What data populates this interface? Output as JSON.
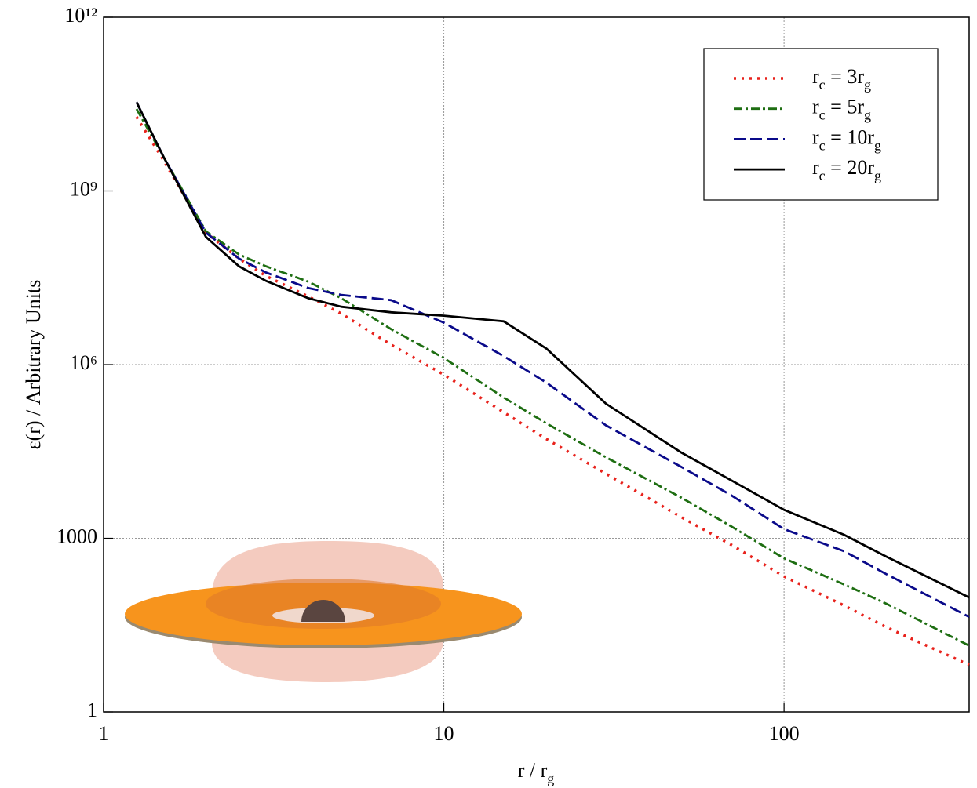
{
  "chart_data": {
    "type": "line",
    "xlabel": "r / rg",
    "ylabel": "ε(r) / Arbitrary Units",
    "x": [
      1.25,
      1.5,
      2,
      2.5,
      3,
      4,
      5,
      7,
      10,
      15,
      20,
      30,
      50,
      70,
      100,
      150,
      200,
      350
    ],
    "series": [
      {
        "name": "rc = 3rg",
        "color": "#e8221c",
        "style": "dotted",
        "values": [
          19000000000.0,
          3400000000.0,
          190000000.0,
          68000000.0,
          34000000.0,
          15000000.0,
          7600000.0,
          2200000.0,
          670000.0,
          150000.0,
          52000.0,
          13000.0,
          2300,
          770,
          220,
          69,
          29,
          6.5
        ]
      },
      {
        "name": "rc = 5rg",
        "color": "#1e6e12",
        "style": "dashdot",
        "values": [
          26000000000.0,
          3900000000.0,
          200000000.0,
          80000000.0,
          50000000.0,
          27000000.0,
          14000000.0,
          4100000.0,
          1300000.0,
          270000.0,
          97000.0,
          25000.0,
          5000,
          1600,
          450,
          160,
          74,
          14
        ]
      },
      {
        "name": "rc = 10rg",
        "color": "#0a0a8a",
        "style": "dashed",
        "values": [
          34000000000.0,
          3900000000.0,
          190000000.0,
          68000000.0,
          39000000.0,
          21000000.0,
          16000000.0,
          13000000.0,
          5300000.0,
          1400000.0,
          490000.0,
          89000.0,
          17000.0,
          5500,
          1440,
          600,
          240,
          44
        ]
      },
      {
        "name": "rc = 20rg",
        "color": "#000000",
        "style": "solid",
        "values": [
          34000000000.0,
          3900000000.0,
          160000000.0,
          50000000.0,
          28000000.0,
          14000000.0,
          10000000.0,
          8000000.0,
          7000000.0,
          5600000.0,
          1900000.0,
          210000.0,
          30000.0,
          10000.0,
          3100,
          1150,
          480,
          95
        ]
      }
    ],
    "xlim": [
      1,
      350
    ],
    "ylim": [
      1,
      1000000000000.0
    ],
    "log_x": true,
    "log_y": true,
    "xticks": [
      1,
      10,
      100
    ],
    "yticks": [
      1,
      1000,
      {
        "value": 1000000,
        "label": "10⁶"
      },
      {
        "value": 1000000000,
        "label": "10⁹"
      },
      {
        "value": 1000000000000,
        "label": "10¹²"
      }
    ],
    "grid": true,
    "legend": "upper right"
  }
}
